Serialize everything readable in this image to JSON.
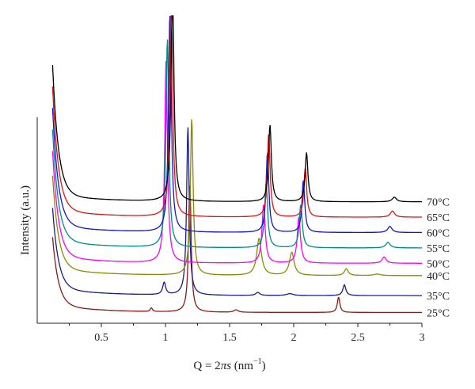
{
  "chart_data": {
    "type": "line",
    "title": "",
    "xlabel": "Q = 2πs (nm⁻¹)",
    "xlabel_parts": {
      "main": "Q = 2",
      "pi_s": "πs",
      "unit_open": " (nm",
      "exp": "−1",
      "unit_close": ")"
    },
    "ylabel": "Intensity (a.u.)",
    "xlim": [
      0,
      3
    ],
    "ylim": [
      0,
      10
    ],
    "x_ticks": [
      "0.5",
      "1",
      "1.5",
      "2",
      "2.5",
      "3"
    ],
    "x_tick_values": [
      0.5,
      1,
      1.5,
      2,
      2.5,
      3
    ],
    "grid": false,
    "legend": "inline labels at right end of each curve",
    "series": [
      {
        "name": "25°C",
        "color": "#8b1a1a",
        "baseline": 0.35,
        "low_q_amp": 2.2,
        "peaks": [
          [
            0.89,
            0.12,
            0.01
          ],
          [
            1.19,
            4.2,
            0.012
          ],
          [
            1.55,
            0.08,
            0.02
          ],
          [
            2.35,
            0.5,
            0.012
          ]
        ]
      },
      {
        "name": "35°C",
        "color": "#1c1c8c",
        "baseline": 0.9,
        "low_q_amp": 2.6,
        "peaks": [
          [
            0.99,
            0.4,
            0.014
          ],
          [
            1.175,
            5.5,
            0.012
          ],
          [
            1.72,
            0.1,
            0.018
          ],
          [
            1.97,
            0.06,
            0.03
          ],
          [
            2.395,
            0.35,
            0.014
          ]
        ]
      },
      {
        "name": "40°C",
        "color": "#8b8b00",
        "baseline": 1.55,
        "low_q_amp": 3.0,
        "peaks": [
          [
            1.205,
            5.1,
            0.013
          ],
          [
            1.73,
            1.2,
            0.022
          ],
          [
            1.985,
            0.75,
            0.022
          ],
          [
            2.41,
            0.22,
            0.018
          ],
          [
            2.65,
            0.05,
            0.03
          ]
        ]
      },
      {
        "name": "50°C",
        "color": "#ff00ff",
        "baseline": 1.95,
        "low_q_amp": 3.4,
        "peaks": [
          [
            1.005,
            6.6,
            0.013
          ],
          [
            1.765,
            1.9,
            0.015
          ],
          [
            2.04,
            1.5,
            0.015
          ],
          [
            2.705,
            0.2,
            0.02
          ]
        ]
      },
      {
        "name": "55°C",
        "color": "#008b8b",
        "baseline": 2.45,
        "low_q_amp": 3.6,
        "peaks": [
          [
            1.015,
            6.8,
            0.013
          ],
          [
            1.785,
            2.1,
            0.014
          ],
          [
            2.055,
            1.4,
            0.014
          ],
          [
            2.735,
            0.18,
            0.02
          ]
        ]
      },
      {
        "name": "60°C",
        "color": "#1414d2",
        "baseline": 2.95,
        "low_q_amp": 3.8,
        "peaks": [
          [
            1.035,
            7.2,
            0.013
          ],
          [
            1.795,
            2.6,
            0.013
          ],
          [
            2.075,
            1.7,
            0.013
          ],
          [
            2.75,
            0.2,
            0.02
          ]
        ]
      },
      {
        "name": "65°C",
        "color": "#e01414",
        "baseline": 3.45,
        "low_q_amp": 4.0,
        "peaks": [
          [
            1.045,
            7.4,
            0.013
          ],
          [
            1.805,
            2.7,
            0.013
          ],
          [
            2.09,
            1.6,
            0.013
          ],
          [
            2.77,
            0.2,
            0.02
          ]
        ]
      },
      {
        "name": "70°C",
        "color": "#000000",
        "baseline": 3.95,
        "low_q_amp": 4.2,
        "peaks": [
          [
            1.055,
            7.2,
            0.013
          ],
          [
            1.815,
            2.5,
            0.013
          ],
          [
            2.1,
            1.6,
            0.013
          ],
          [
            2.785,
            0.15,
            0.02
          ]
        ]
      }
    ]
  }
}
